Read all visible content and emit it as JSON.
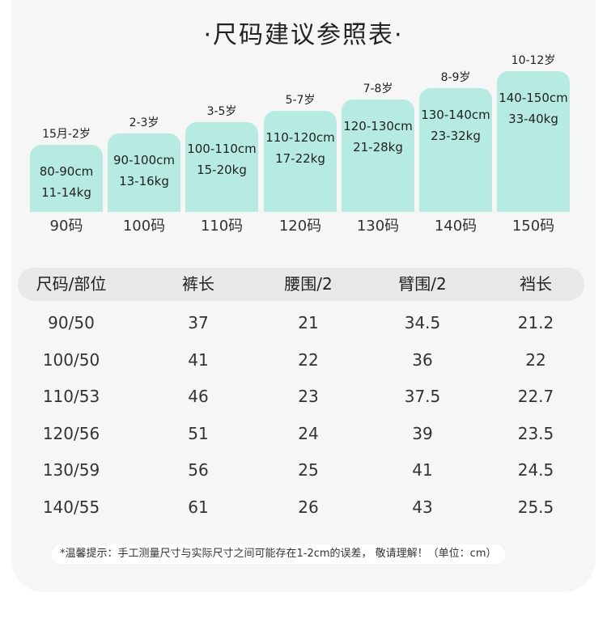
{
  "title": "·尺码建议参照表·",
  "sizes": [
    {
      "age": "15月-2岁",
      "height": "80-90cm",
      "weight": "11-14kg",
      "code": "90码",
      "level": 1
    },
    {
      "age": "2-3岁",
      "height": "90-100cm",
      "weight": "13-16kg",
      "code": "100码",
      "level": 2
    },
    {
      "age": "3-5岁",
      "height": "100-110cm",
      "weight": "15-20kg",
      "code": "110码",
      "level": 3
    },
    {
      "age": "5-7岁",
      "height": "110-120cm",
      "weight": "17-22kg",
      "code": "120码",
      "level": 4
    },
    {
      "age": "7-8岁",
      "height": "120-130cm",
      "weight": "21-28kg",
      "code": "130码",
      "level": 5
    },
    {
      "age": "8-9岁",
      "height": "130-140cm",
      "weight": "23-32kg",
      "code": "140码",
      "level": 6
    },
    {
      "age": "10-12岁",
      "height": "140-150cm",
      "weight": "33-40kg",
      "code": "150码",
      "level": 7
    }
  ],
  "table": {
    "headers": [
      "尺码/部位",
      "裤长",
      "腰围/2",
      "臂围/2",
      "裆长"
    ],
    "rows": [
      [
        "90/50",
        "37",
        "21",
        "34.5",
        "21.2"
      ],
      [
        "100/50",
        "41",
        "22",
        "36",
        "22"
      ],
      [
        "110/53",
        "46",
        "23",
        "37.5",
        "22.7"
      ],
      [
        "120/56",
        "51",
        "24",
        "39",
        "23.5"
      ],
      [
        "130/59",
        "56",
        "25",
        "41",
        "24.5"
      ],
      [
        "140/55",
        "61",
        "26",
        "43",
        "25.5"
      ]
    ]
  },
  "note": "*温馨提示：手工测量尺寸与实际尺寸之间可能存在1-2cm的误差， 敬请理解！（单位：cm）"
}
